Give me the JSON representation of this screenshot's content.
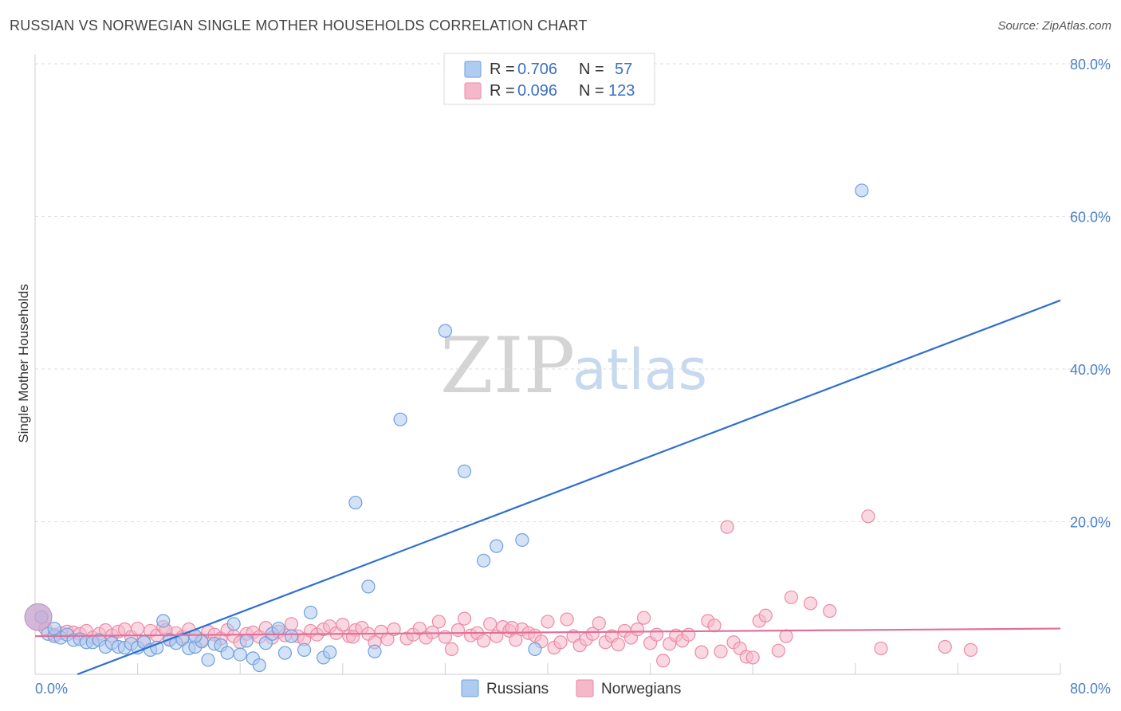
{
  "title": "RUSSIAN VS NORWEGIAN SINGLE MOTHER HOUSEHOLDS CORRELATION CHART",
  "source": "Source: ZipAtlas.com",
  "watermark": {
    "zip": "ZIP",
    "atlas": "atlas"
  },
  "legend": {
    "r_label": "R =",
    "n_label": "N =",
    "rows": [
      {
        "r": "0.706",
        "n": "57",
        "color": "#aecbf0"
      },
      {
        "r": "0.096",
        "n": "123",
        "color": "#f5b8ca"
      }
    ]
  },
  "chart_data": {
    "type": "scatter",
    "title": "RUSSIAN VS NORWEGIAN SINGLE MOTHER HOUSEHOLDS CORRELATION CHART",
    "xlabel": "",
    "ylabel": "Single Mother Households",
    "xlim": [
      0,
      80
    ],
    "ylim": [
      0,
      80
    ],
    "x_tick_labels": [
      "0.0%",
      "80.0%"
    ],
    "y_tick_labels": [
      "20.0%",
      "40.0%",
      "60.0%",
      "80.0%"
    ],
    "y_ticks": [
      20,
      40,
      60,
      80
    ],
    "x_minor_ticks": [
      8,
      16,
      24,
      32,
      40,
      48,
      56,
      64,
      72,
      80
    ],
    "grid": "horizontal dashed",
    "legend_position": "top-center",
    "series": [
      {
        "name": "Russians",
        "color": "#6fa0dc",
        "fill": "#aecbf0",
        "trend": {
          "x": [
            3.3,
            80
          ],
          "y": [
            0,
            49
          ]
        },
        "points": [
          [
            0.5,
            7.5
          ],
          [
            1.0,
            5.3
          ],
          [
            1.5,
            5.0
          ],
          [
            2.0,
            4.8
          ],
          [
            2.5,
            5.2
          ],
          [
            3.0,
            4.5
          ],
          [
            3.5,
            4.6
          ],
          [
            4.0,
            4.2
          ],
          [
            4.5,
            4.2
          ],
          [
            5.0,
            4.5
          ],
          [
            5.5,
            3.6
          ],
          [
            6.0,
            4.1
          ],
          [
            6.5,
            3.6
          ],
          [
            7.0,
            3.5
          ],
          [
            7.5,
            4.0
          ],
          [
            8.0,
            3.5
          ],
          [
            8.5,
            4.2
          ],
          [
            9.0,
            3.2
          ],
          [
            9.5,
            3.5
          ],
          [
            10.0,
            7.0
          ],
          [
            10.5,
            4.5
          ],
          [
            11.0,
            4.1
          ],
          [
            11.5,
            4.6
          ],
          [
            12.0,
            3.4
          ],
          [
            12.5,
            3.6
          ],
          [
            13.0,
            4.3
          ],
          [
            13.5,
            1.9
          ],
          [
            14.0,
            4.0
          ],
          [
            14.5,
            3.8
          ],
          [
            15.0,
            2.8
          ],
          [
            15.5,
            6.6
          ],
          [
            16.0,
            2.6
          ],
          [
            16.5,
            4.4
          ],
          [
            17.0,
            2.1
          ],
          [
            17.5,
            1.2
          ],
          [
            18.0,
            4.1
          ],
          [
            18.5,
            5.3
          ],
          [
            19.0,
            6.0
          ],
          [
            19.5,
            2.8
          ],
          [
            20.0,
            5.0
          ],
          [
            21.0,
            3.2
          ],
          [
            21.5,
            8.1
          ],
          [
            22.5,
            2.2
          ],
          [
            23.0,
            2.9
          ],
          [
            25.0,
            22.5
          ],
          [
            26.0,
            11.5
          ],
          [
            26.5,
            3.0
          ],
          [
            28.5,
            33.4
          ],
          [
            32.0,
            45.0
          ],
          [
            33.5,
            26.6
          ],
          [
            35.0,
            14.9
          ],
          [
            36.0,
            16.8
          ],
          [
            38.0,
            17.6
          ],
          [
            39.0,
            3.3
          ],
          [
            64.5,
            63.4
          ],
          [
            1.5,
            6.0
          ],
          [
            12.5,
            5.0
          ]
        ],
        "large_point": [
          0.5,
          7.5
        ]
      },
      {
        "name": "Norwegians",
        "color": "#ec8aa6",
        "fill": "#f5b8ca",
        "trend": {
          "x": [
            0,
            80
          ],
          "y": [
            5.0,
            6.0
          ]
        },
        "points": [
          [
            0.8,
            6.0
          ],
          [
            1.5,
            5.2
          ],
          [
            2.0,
            5.4
          ],
          [
            2.5,
            5.6
          ],
          [
            3.0,
            5.5
          ],
          [
            3.5,
            5.3
          ],
          [
            4.0,
            5.7
          ],
          [
            4.5,
            4.8
          ],
          [
            5.0,
            5.3
          ],
          [
            5.5,
            5.8
          ],
          [
            6.0,
            5.1
          ],
          [
            6.5,
            5.6
          ],
          [
            7.0,
            5.9
          ],
          [
            7.5,
            4.9
          ],
          [
            8.0,
            6.0
          ],
          [
            8.5,
            4.3
          ],
          [
            9.0,
            5.7
          ],
          [
            9.5,
            5.1
          ],
          [
            10.0,
            6.2
          ],
          [
            10.5,
            4.6
          ],
          [
            11.0,
            5.4
          ],
          [
            11.5,
            4.9
          ],
          [
            12.0,
            5.9
          ],
          [
            12.5,
            5.0
          ],
          [
            13.0,
            4.5
          ],
          [
            13.5,
            5.6
          ],
          [
            14.0,
            5.2
          ],
          [
            14.5,
            4.7
          ],
          [
            15.0,
            5.8
          ],
          [
            15.5,
            5.0
          ],
          [
            16.0,
            4.2
          ],
          [
            16.5,
            5.3
          ],
          [
            17.0,
            5.5
          ],
          [
            17.5,
            4.9
          ],
          [
            18.0,
            6.1
          ],
          [
            18.5,
            4.8
          ],
          [
            19.0,
            5.6
          ],
          [
            19.5,
            5.1
          ],
          [
            20.0,
            6.6
          ],
          [
            20.5,
            5.0
          ],
          [
            21.0,
            4.6
          ],
          [
            21.5,
            5.7
          ],
          [
            22.0,
            5.2
          ],
          [
            22.5,
            5.9
          ],
          [
            23.0,
            6.3
          ],
          [
            23.5,
            5.4
          ],
          [
            24.0,
            6.5
          ],
          [
            24.5,
            5.0
          ],
          [
            25.0,
            5.8
          ],
          [
            25.5,
            6.1
          ],
          [
            26.0,
            5.3
          ],
          [
            26.5,
            4.2
          ],
          [
            27.0,
            5.6
          ],
          [
            27.5,
            4.6
          ],
          [
            28.0,
            5.9
          ],
          [
            29.0,
            4.7
          ],
          [
            29.5,
            5.2
          ],
          [
            30.0,
            6.0
          ],
          [
            30.5,
            4.8
          ],
          [
            31.0,
            5.5
          ],
          [
            31.5,
            6.9
          ],
          [
            32.0,
            4.9
          ],
          [
            32.5,
            3.3
          ],
          [
            33.0,
            5.8
          ],
          [
            33.5,
            7.3
          ],
          [
            34.0,
            5.1
          ],
          [
            34.5,
            5.4
          ],
          [
            35.0,
            4.4
          ],
          [
            35.5,
            6.6
          ],
          [
            36.0,
            5.0
          ],
          [
            36.5,
            6.2
          ],
          [
            37.0,
            5.7
          ],
          [
            37.5,
            4.5
          ],
          [
            38.0,
            5.9
          ],
          [
            38.5,
            5.4
          ],
          [
            39.0,
            5.1
          ],
          [
            39.5,
            4.3
          ],
          [
            40.0,
            6.9
          ],
          [
            40.5,
            3.5
          ],
          [
            41.0,
            4.2
          ],
          [
            41.5,
            7.2
          ],
          [
            42.0,
            5.0
          ],
          [
            42.5,
            3.8
          ],
          [
            43.0,
            4.6
          ],
          [
            43.5,
            5.3
          ],
          [
            44.0,
            6.7
          ],
          [
            44.5,
            4.2
          ],
          [
            45.0,
            5.0
          ],
          [
            45.5,
            3.9
          ],
          [
            46.0,
            5.7
          ],
          [
            46.5,
            4.8
          ],
          [
            47.0,
            5.9
          ],
          [
            47.5,
            7.4
          ],
          [
            48.0,
            4.1
          ],
          [
            48.5,
            5.2
          ],
          [
            49.0,
            1.8
          ],
          [
            49.5,
            4.0
          ],
          [
            50.0,
            5.1
          ],
          [
            50.5,
            4.4
          ],
          [
            51.0,
            5.2
          ],
          [
            52.0,
            2.9
          ],
          [
            52.5,
            7.0
          ],
          [
            53.0,
            6.4
          ],
          [
            53.5,
            3.0
          ],
          [
            54.0,
            19.3
          ],
          [
            54.5,
            4.2
          ],
          [
            55.0,
            3.4
          ],
          [
            55.5,
            2.3
          ],
          [
            56.0,
            2.2
          ],
          [
            56.5,
            7.0
          ],
          [
            57.0,
            7.7
          ],
          [
            58.0,
            3.1
          ],
          [
            59.0,
            10.1
          ],
          [
            60.5,
            9.3
          ],
          [
            62.0,
            8.3
          ],
          [
            65.0,
            20.7
          ],
          [
            66.0,
            3.4
          ],
          [
            71.0,
            3.6
          ],
          [
            73.0,
            3.2
          ],
          [
            10.2,
            5.8
          ],
          [
            24.8,
            4.9
          ],
          [
            37.2,
            6.1
          ],
          [
            58.6,
            5.0
          ]
        ]
      }
    ]
  },
  "bottom_legend": [
    "Russians",
    "Norwegians"
  ]
}
